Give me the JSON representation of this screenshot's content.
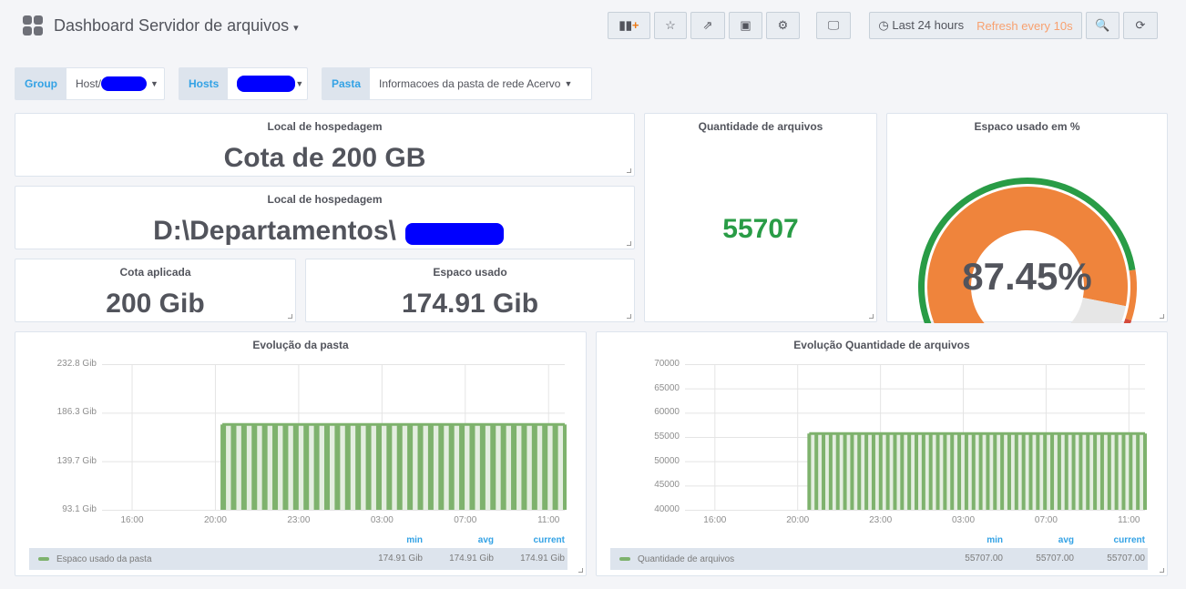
{
  "header": {
    "title": "Dashboard Servidor de arquivos",
    "time_range": "Last 24 hours",
    "refresh": "Refresh every 10s",
    "refresh_color": "#eb7b18"
  },
  "toolbar_icons": [
    "add-panel-icon",
    "star-icon",
    "share-icon",
    "save-icon",
    "gear-icon",
    "tv-mode-icon",
    "zoom-out-icon",
    "refresh-icon"
  ],
  "variables": [
    {
      "label": "Group",
      "value": "Host/"
    },
    {
      "label": "Hosts",
      "value": ""
    },
    {
      "label": "Pasta",
      "value": "Informacoes da pasta de rede Acervo"
    }
  ],
  "panels": {
    "local1": {
      "title": "Local de hospedagem",
      "value": "Cota de 200 GB"
    },
    "local2": {
      "title": "Local de hospedagem",
      "value": "D:\\Departamentos\\"
    },
    "cota": {
      "title": "Cota aplicada",
      "value": "200 Gib"
    },
    "espaco": {
      "title": "Espaco usado",
      "value": "174.91 Gib"
    },
    "qtd": {
      "title": "Quantidade de arquivos",
      "value": "55707",
      "color": "#299c46"
    },
    "gauge": {
      "title": "Espaco usado em %",
      "value": "87.45%",
      "percent": 87.45,
      "colors": {
        "fill": "#ef843c",
        "ok": "#299c46",
        "warn": "#ef843c",
        "crit": "#d44a3a"
      }
    }
  },
  "chart_data": [
    {
      "type": "bar",
      "title": "Evolução da pasta",
      "yticks": [
        "232.8 Gib",
        "186.3 Gib",
        "139.7 Gib",
        "93.1 Gib"
      ],
      "ylim": [
        93.1,
        232.8
      ],
      "xticks": [
        "16:00",
        "20:00",
        "23:00",
        "03:00",
        "07:00",
        "11:00"
      ],
      "series": [
        {
          "name": "Espaco usado da pasta",
          "value": 174.91,
          "start_fraction": 0.26,
          "color": "#7eb26d"
        }
      ],
      "legend": {
        "headers": [
          "min",
          "avg",
          "current"
        ],
        "values": [
          "174.91 Gib",
          "174.91 Gib",
          "174.91 Gib"
        ]
      }
    },
    {
      "type": "bar",
      "title": "Evolução Quantidade de arquivos",
      "yticks": [
        "70000",
        "65000",
        "60000",
        "55000",
        "50000",
        "45000",
        "40000"
      ],
      "ylim": [
        40000,
        70000
      ],
      "xticks": [
        "16:00",
        "20:00",
        "23:00",
        "03:00",
        "07:00",
        "11:00"
      ],
      "series": [
        {
          "name": "Quantidade de arquivos",
          "value": 55707,
          "start_fraction": 0.27,
          "color": "#7eb26d"
        }
      ],
      "legend": {
        "headers": [
          "min",
          "avg",
          "current"
        ],
        "values": [
          "55707.00",
          "55707.00",
          "55707.00"
        ]
      }
    }
  ]
}
